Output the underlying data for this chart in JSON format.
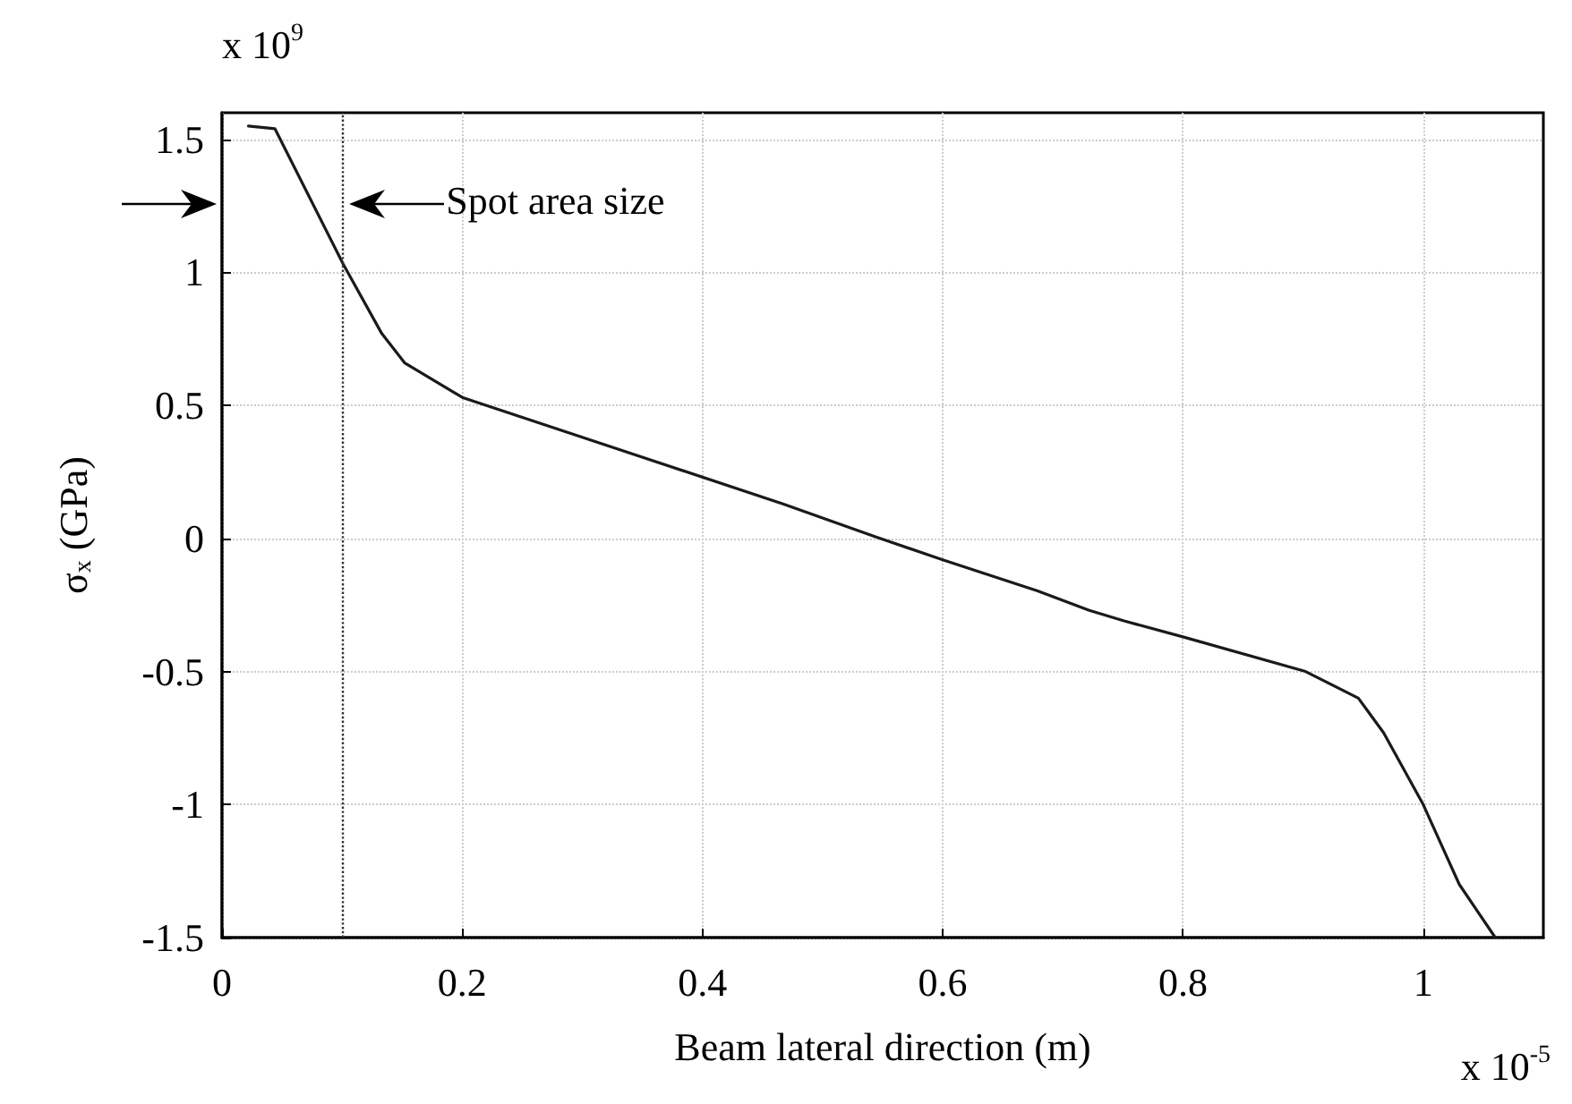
{
  "chart_data": {
    "type": "line",
    "xlabel": "Beam lateral direction (m)",
    "ylabel": "σ$_{x}$ (GPa)",
    "annotations": [
      "x 10$^{9}$",
      "x 10$^{-5}$"
    ],
    "x": [
      0.022,
      0.044,
      0.101,
      0.133,
      0.152,
      0.2,
      0.467,
      0.544,
      0.6,
      0.679,
      0.722,
      0.751,
      0.8,
      0.902,
      0.946,
      0.967,
      1.0,
      1.03,
      1.06
    ],
    "series": [
      {
        "color": "#1a1a1a",
        "values": [
          1.55,
          1.54,
          1.03,
          0.77,
          0.66,
          0.53,
          0.13,
          0.006,
          -0.08,
          -0.197,
          -0.27,
          -0.31,
          -0.37,
          -0.5,
          -0.6,
          -0.73,
          -1.0,
          -1.3,
          -1.5
        ]
      }
    ],
    "xlim": [
      0,
      1.1
    ],
    "xticks": [
      0,
      0.2,
      0.4,
      0.6,
      0.8,
      1
    ],
    "ylim": [
      -1.5,
      1.6
    ],
    "yticks": [
      -1.5,
      -1,
      -0.5,
      0,
      0.5,
      1,
      1.5
    ],
    "ref_lines": [
      {
        "axis": "x",
        "value": 0.1,
        "label": "Spot area size",
        "line_style": "dotted",
        "color": "#333333"
      }
    ],
    "grid": true,
    "marker": "none",
    "line_style": "solid"
  }
}
